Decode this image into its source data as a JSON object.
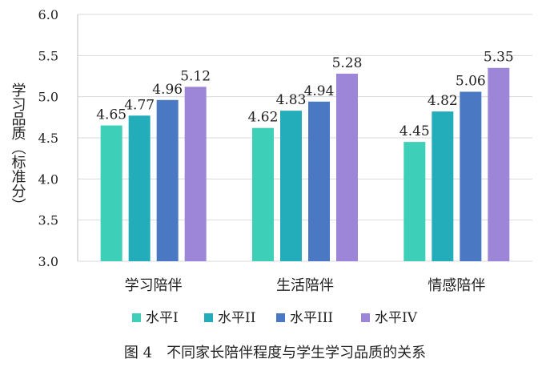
{
  "chart_data": {
    "type": "bar",
    "categories": [
      "学习陪伴",
      "生活陪伴",
      "情感陪伴"
    ],
    "series": [
      {
        "name": "水平I",
        "color": "#3ecfb8",
        "values": [
          4.65,
          4.62,
          4.45
        ]
      },
      {
        "name": "水平II",
        "color": "#23adbb",
        "values": [
          4.77,
          4.83,
          4.82
        ]
      },
      {
        "name": "水平III",
        "color": "#4a78c2",
        "values": [
          4.96,
          4.94,
          5.06
        ]
      },
      {
        "name": "水平IV",
        "color": "#9d85d8",
        "values": [
          5.12,
          5.28,
          5.35
        ]
      }
    ],
    "ylabel": "学习品质（标准分）",
    "ylim": [
      3.0,
      6.0
    ],
    "yticks": [
      "3.0",
      "3.5",
      "4.0",
      "4.5",
      "5.0",
      "5.5",
      "6.0"
    ],
    "grid": true,
    "legend": "bottom"
  },
  "caption": "图 4　不同家长陪伴程度与学生学习品质的关系"
}
